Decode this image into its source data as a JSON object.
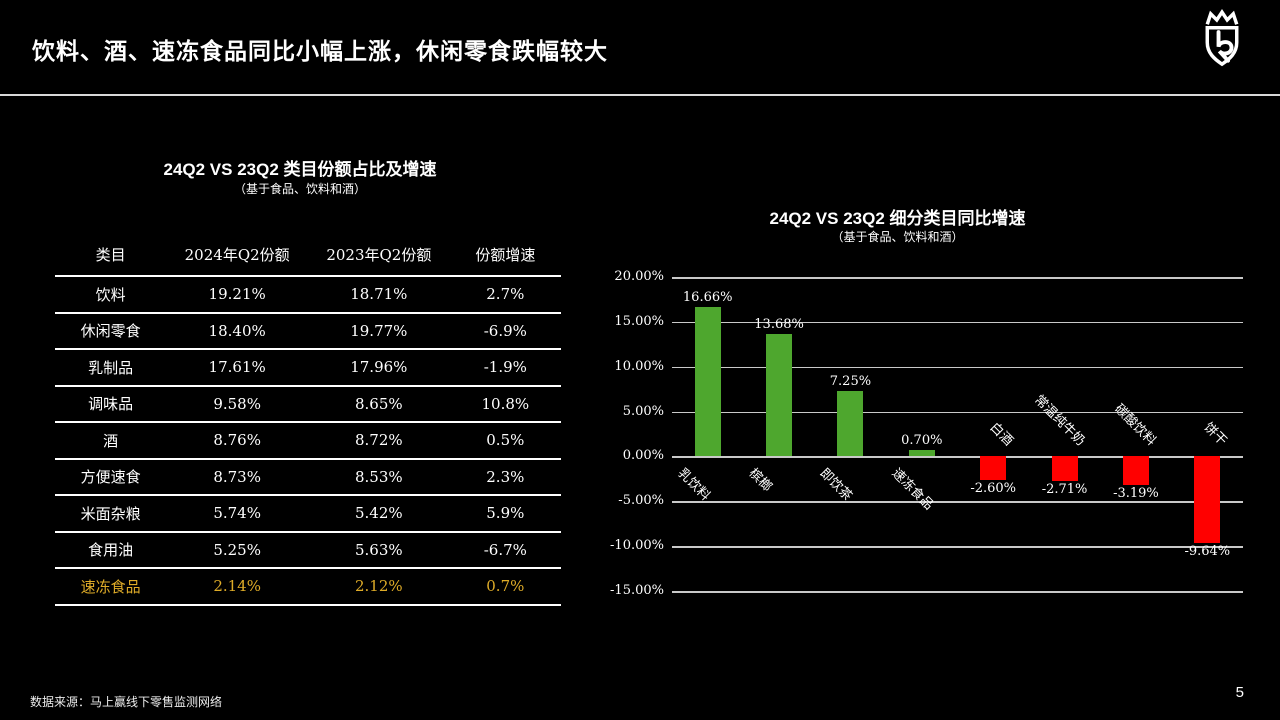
{
  "header": {
    "title": "饮料、酒、速冻食品同比小幅上涨，休闲零食跌幅较大",
    "logo_icon": "crown-shield-logo-icon"
  },
  "table_panel": {
    "title": "24Q2 VS 23Q2 类目份额占比及增速",
    "subtitle": "（基于食品、饮料和酒）",
    "columns": [
      "类目",
      "2024年Q2份额",
      "2023年Q2份额",
      "份额增速"
    ],
    "rows": [
      {
        "category": "饮料",
        "share_2024": "19.21%",
        "share_2023": "18.71%",
        "growth": "2.7%",
        "highlight": false
      },
      {
        "category": "休闲零食",
        "share_2024": "18.40%",
        "share_2023": "19.77%",
        "growth": "-6.9%",
        "highlight": false
      },
      {
        "category": "乳制品",
        "share_2024": "17.61%",
        "share_2023": "17.96%",
        "growth": "-1.9%",
        "highlight": false
      },
      {
        "category": "调味品",
        "share_2024": "9.58%",
        "share_2023": "8.65%",
        "growth": "10.8%",
        "highlight": false
      },
      {
        "category": "酒",
        "share_2024": "8.76%",
        "share_2023": "8.72%",
        "growth": "0.5%",
        "highlight": false
      },
      {
        "category": "方便速食",
        "share_2024": "8.73%",
        "share_2023": "8.53%",
        "growth": "2.3%",
        "highlight": false
      },
      {
        "category": "米面杂粮",
        "share_2024": "5.74%",
        "share_2023": "5.42%",
        "growth": "5.9%",
        "highlight": false
      },
      {
        "category": "食用油",
        "share_2024": "5.25%",
        "share_2023": "5.63%",
        "growth": "-6.7%",
        "highlight": false
      },
      {
        "category": "速冻食品",
        "share_2024": "2.14%",
        "share_2023": "2.12%",
        "growth": "0.7%",
        "highlight": true
      }
    ],
    "highlight_color": "#DFAC28"
  },
  "chart_panel": {
    "title": "24Q2 VS 23Q2 细分类目同比增速",
    "subtitle": "（基于食品、饮料和酒）"
  },
  "chart_data": {
    "type": "bar",
    "title": "24Q2 VS 23Q2 细分类目同比增速",
    "categories": [
      "乳饮料",
      "槟榔",
      "即饮茶",
      "速冻食品",
      "白酒",
      "常温纯牛奶",
      "碳酸饮料",
      "饼干"
    ],
    "values": [
      16.66,
      13.68,
      7.25,
      0.7,
      -2.6,
      -2.71,
      -3.19,
      -9.64
    ],
    "data_labels": [
      "16.66%",
      "13.68%",
      "7.25%",
      "0.70%",
      "-2.60%",
      "-2.71%",
      "-3.19%",
      "-9.64%"
    ],
    "xlabel": "",
    "ylabel": "",
    "ylim": [
      -15,
      20
    ],
    "ytick_step": 5,
    "ytick_labels": [
      "20.00%",
      "15.00%",
      "10.00%",
      "5.00%",
      "0.00%",
      "-5.00%",
      "-10.00%",
      "-15.00%"
    ],
    "grid": true,
    "legend": false,
    "positive_color": "#4EA72E",
    "negative_color": "#FF0000",
    "background_color": "#000000"
  },
  "footer": {
    "source": "数据来源：马上赢线下零售监测网络",
    "page_number": "5"
  }
}
